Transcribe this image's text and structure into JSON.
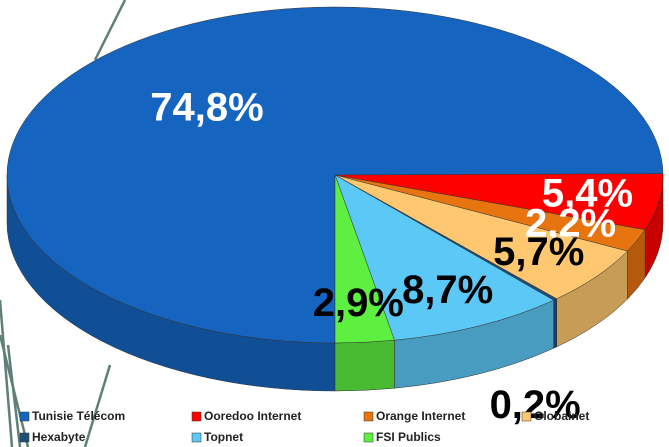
{
  "chart_data": {
    "type": "pie",
    "categories": [
      "Tunisie Télécom",
      "Ooredoo Internet",
      "Orange Internet",
      "Globalnet",
      "Hexabyte",
      "Topnet",
      "FSI Publics"
    ],
    "values": [
      74.8,
      5.4,
      2.2,
      5.7,
      0.2,
      8.7,
      2.9
    ],
    "value_labels": [
      "74,8%",
      "5,4%",
      "2,2%",
      "5,7%",
      "0,2%",
      "8,7%",
      "2,9%"
    ],
    "colors": [
      "#1565c0",
      "#ff0000",
      "#e8740f",
      "#ffc870",
      "#1f4e79",
      "#5bc8f5",
      "#5ef040"
    ],
    "legend": "bottom"
  }
}
